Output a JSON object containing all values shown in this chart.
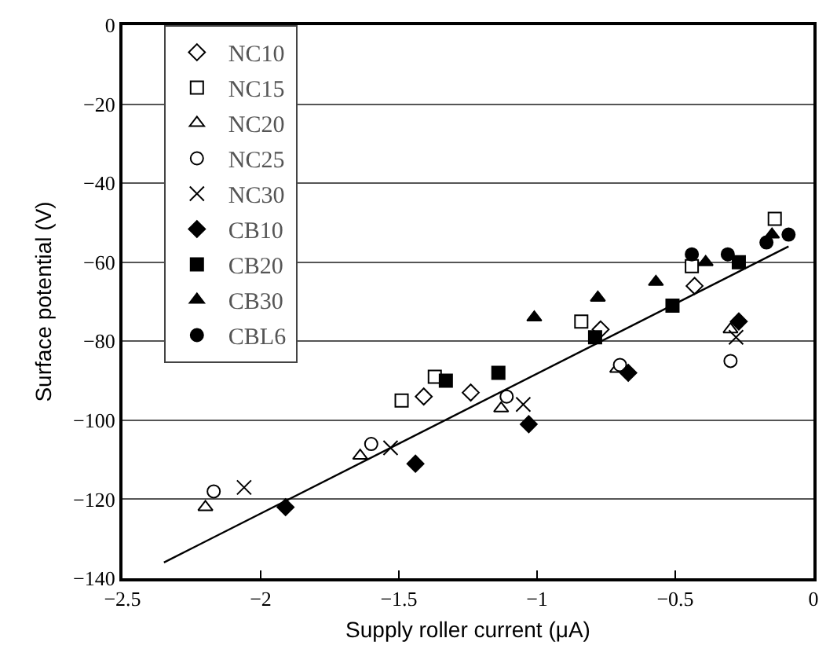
{
  "chart_data": {
    "type": "scatter",
    "xlabel": "Supply roller current (μA)",
    "ylabel": "Surface potential (V)",
    "xlim": [
      -2.5,
      0
    ],
    "xticks": [
      -2.5,
      -2,
      -1.5,
      -1,
      -0.5,
      0
    ],
    "ylim": [
      -140,
      0
    ],
    "yticks": [
      -140,
      -120,
      -100,
      -80,
      -60,
      -40,
      -20,
      0
    ],
    "grid": "y",
    "legend": "top left",
    "series": [
      {
        "name": "NC10",
        "color": "#ffffff",
        "marker": "diamond",
        "x": [
          -1.41,
          -1.24,
          -0.77,
          -0.43
        ],
        "values": [
          -94,
          -93,
          -77,
          -66
        ]
      },
      {
        "name": "NC15",
        "color": "#ffffff",
        "marker": "square",
        "x": [
          -1.49,
          -1.37,
          -0.84,
          -0.44,
          -0.14
        ],
        "values": [
          -95,
          -89,
          -75,
          -61,
          -49
        ]
      },
      {
        "name": "NC20",
        "color": "#ffffff",
        "marker": "triangle",
        "x": [
          -2.2,
          -1.64,
          -1.13,
          -0.71,
          -0.3
        ],
        "values": [
          -122,
          -109,
          -97,
          -87,
          -77
        ]
      },
      {
        "name": "NC25",
        "color": "#ffffff",
        "marker": "circle",
        "x": [
          -2.17,
          -1.6,
          -1.11,
          -0.7,
          -0.3
        ],
        "values": [
          -118,
          -106,
          -94,
          -86,
          -85
        ]
      },
      {
        "name": "NC30",
        "color": "#000000",
        "marker": "cross",
        "x": [
          -2.06,
          -1.53,
          -1.05,
          -0.28
        ],
        "values": [
          -117,
          -107,
          -96,
          -79
        ]
      },
      {
        "name": "CB10",
        "color": "#000000",
        "marker": "diamond",
        "x": [
          -1.91,
          -1.44,
          -1.03,
          -0.67,
          -0.27
        ],
        "values": [
          -122,
          -111,
          -101,
          -88,
          -75
        ]
      },
      {
        "name": "CB20",
        "color": "#000000",
        "marker": "square",
        "x": [
          -1.33,
          -1.14,
          -0.79,
          -0.51,
          -0.27
        ],
        "values": [
          -90,
          -88,
          -79,
          -71,
          -60
        ]
      },
      {
        "name": "CB30",
        "color": "#000000",
        "marker": "triangle",
        "x": [
          -1.01,
          -0.78,
          -0.57,
          -0.39,
          -0.15
        ],
        "values": [
          -74,
          -69,
          -65,
          -60,
          -53
        ]
      },
      {
        "name": "CBL6",
        "color": "#000000",
        "marker": "circle",
        "x": [
          -0.44,
          -0.31,
          -0.17,
          -0.09
        ],
        "values": [
          -58,
          -58,
          -55,
          -53
        ]
      },
      {
        "type": "line",
        "color": "#000000",
        "marker": "none",
        "x": [
          -2.35,
          -0.09
        ],
        "values": [
          -136,
          -56
        ]
      }
    ]
  }
}
